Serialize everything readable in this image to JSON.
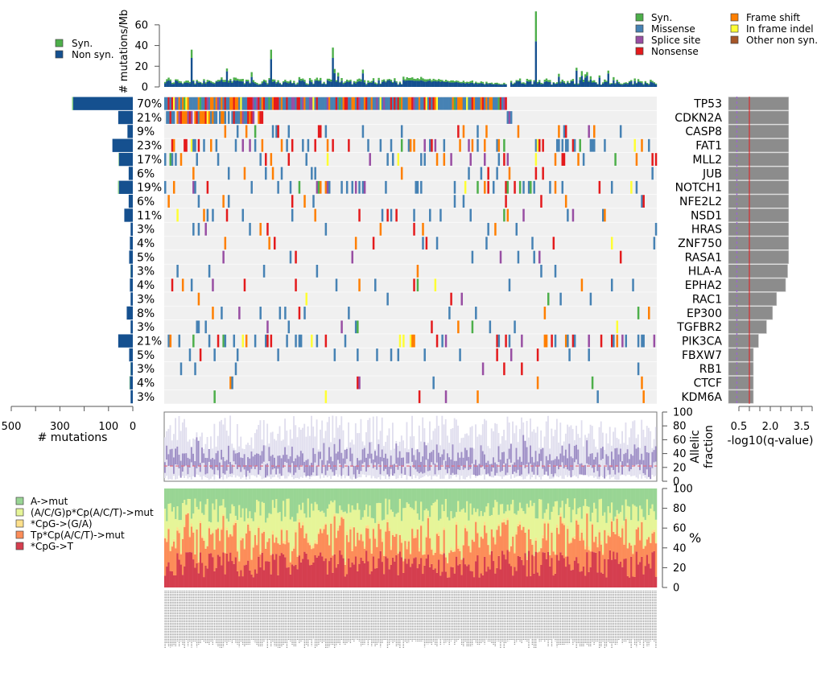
{
  "chart_data": [
    {
      "type": "bar",
      "name": "mutation-rate",
      "ylabel": "# mutations/Mb",
      "yticks": [
        0,
        20,
        40,
        60
      ],
      "ylim": [
        0,
        70
      ],
      "legend": [
        {
          "label": "Syn.",
          "color": "#4daf4a"
        },
        {
          "label": "Non syn.",
          "color": "#15508f"
        }
      ],
      "legend_position": "top-left",
      "n_samples": 279,
      "notable_peaks": [
        {
          "sample_index": 210,
          "nonsyn": 44,
          "syn": 29
        },
        {
          "sample_index": 15,
          "nonsyn": 28,
          "syn": 8
        },
        {
          "sample_index": 60,
          "nonsyn": 27,
          "syn": 9
        },
        {
          "sample_index": 95,
          "nonsyn": 28,
          "syn": 10
        }
      ]
    },
    {
      "type": "heatmap",
      "name": "oncoprint",
      "legend": [
        {
          "label": "Syn.",
          "color": "#4daf4a"
        },
        {
          "label": "Missense",
          "color": "#4682b4"
        },
        {
          "label": "Splice site",
          "color": "#984ea3"
        },
        {
          "label": "Nonsense",
          "color": "#e41a1c"
        },
        {
          "label": "Frame shift",
          "color": "#ff7f00"
        },
        {
          "label": "In frame indel",
          "color": "#ffff33"
        },
        {
          "label": "Other non syn.",
          "color": "#a65628"
        }
      ],
      "legend_position": "top-right",
      "genes": [
        "TP53",
        "CDKN2A",
        "CASP8",
        "FAT1",
        "MLL2",
        "JUB",
        "NOTCH1",
        "NFE2L2",
        "NSD1",
        "HRAS",
        "ZNF750",
        "RASA1",
        "HLA-A",
        "EPHA2",
        "RAC1",
        "EP300",
        "TGFBR2",
        "PIK3CA",
        "FBXW7",
        "RB1",
        "CTCF",
        "KDM6A"
      ],
      "percent_mutated": [
        "70%",
        "21%",
        "9%",
        "23%",
        "17%",
        "6%",
        "19%",
        "6%",
        "11%",
        "3%",
        "4%",
        "5%",
        "3%",
        "4%",
        "3%",
        "8%",
        "3%",
        "21%",
        "5%",
        "3%",
        "4%",
        "3%"
      ]
    },
    {
      "type": "bar",
      "name": "mutations-per-gene",
      "orientation": "horizontal-left",
      "xlabel": "# mutations",
      "xticks": [
        500,
        300,
        100,
        0
      ],
      "xlim": [
        0,
        500
      ],
      "series": [
        {
          "name": "Non syn.",
          "color": "#15508f",
          "values": [
            245,
            60,
            22,
            84,
            57,
            17,
            57,
            17,
            35,
            9,
            12,
            15,
            9,
            12,
            9,
            25,
            9,
            60,
            15,
            9,
            12,
            9
          ]
        },
        {
          "name": "Syn.",
          "color": "#4daf4a",
          "values": [
            5,
            0,
            0,
            0,
            2,
            0,
            4,
            0,
            0,
            0,
            0,
            0,
            1,
            0,
            0,
            0,
            0,
            0,
            0,
            1,
            2,
            0
          ]
        }
      ]
    },
    {
      "type": "bar",
      "name": "q-value",
      "orientation": "horizontal",
      "xlabel": "-log10(q-value)",
      "xtick_labels": [
        "0.5",
        "2.0",
        "3.5"
      ],
      "xlim": [
        0,
        4
      ],
      "values": [
        3.0,
        3.0,
        3.0,
        3.0,
        3.0,
        3.0,
        3.0,
        3.0,
        3.0,
        3.0,
        3.0,
        3.0,
        2.95,
        2.85,
        2.4,
        2.2,
        1.9,
        1.5,
        0.45,
        0.15,
        0.15,
        0.0
      ],
      "reference_lines": [
        {
          "value": 0.5,
          "style": "dashed",
          "color": "#9966cc"
        },
        {
          "value": 1.0,
          "style": "solid",
          "color": "#e41a1c"
        }
      ]
    },
    {
      "type": "bar",
      "name": "allelic-fraction",
      "ylabel": "Allelic\nfraction",
      "yticks": [
        0,
        20,
        40,
        60,
        80,
        100
      ],
      "ylim": [
        0,
        100
      ],
      "median_line": 22,
      "colors": {
        "range": "#e0deee",
        "iqr": "#9b8bc4",
        "median": "#e86a7a"
      }
    },
    {
      "type": "bar",
      "name": "mutation-context",
      "ylabel": "%",
      "yticks": [
        0,
        20,
        40,
        60,
        80,
        100
      ],
      "ylim": [
        0,
        100
      ],
      "stacked": true,
      "legend": [
        {
          "label": "A->mut",
          "color": "#99d594"
        },
        {
          "label": "(A/C/G)p*Cp(A/C/T)->mut",
          "color": "#e6f598"
        },
        {
          "label": "*CpG->(G/A)",
          "color": "#fee08b"
        },
        {
          "label": "Tp*Cp(A/C/T)->mut",
          "color": "#fc8d59"
        },
        {
          "label": "*CpG->T",
          "color": "#d53e4f"
        }
      ],
      "legend_position": "left",
      "mean_fractions": {
        "*CpG->T": 22,
        "Tp*Cp(A/C/T)->mut": 25,
        "*CpG->(G/A)": 3,
        "(A/C/G)p*Cp(A/C/T)->mut": 30,
        "A->mut": 20
      }
    }
  ]
}
